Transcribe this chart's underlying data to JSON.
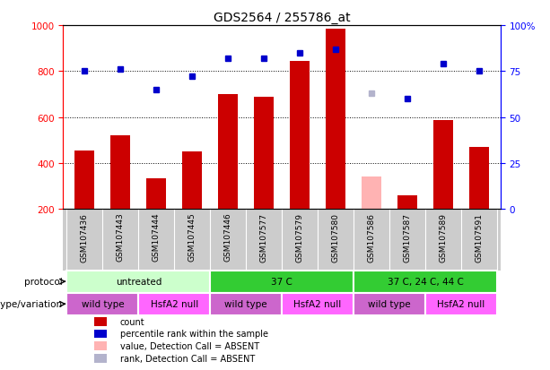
{
  "title": "GDS2564 / 255786_at",
  "samples": [
    "GSM107436",
    "GSM107443",
    "GSM107444",
    "GSM107445",
    "GSM107446",
    "GSM107577",
    "GSM107579",
    "GSM107580",
    "GSM107586",
    "GSM107587",
    "GSM107589",
    "GSM107591"
  ],
  "bar_values": [
    455,
    520,
    335,
    450,
    700,
    690,
    845,
    985,
    340,
    258,
    585,
    470
  ],
  "bar_colors": [
    "#cc0000",
    "#cc0000",
    "#cc0000",
    "#cc0000",
    "#cc0000",
    "#cc0000",
    "#cc0000",
    "#cc0000",
    "#ffb3b3",
    "#cc0000",
    "#cc0000",
    "#cc0000"
  ],
  "dot_values": [
    75,
    76,
    65,
    72,
    82,
    82,
    85,
    87,
    63,
    60,
    79,
    75
  ],
  "dot_colors": [
    "#0000cc",
    "#0000cc",
    "#0000cc",
    "#0000cc",
    "#0000cc",
    "#0000cc",
    "#0000cc",
    "#0000cc",
    "#b3b3cc",
    "#0000cc",
    "#0000cc",
    "#0000cc"
  ],
  "ylim_left": [
    200,
    1000
  ],
  "ylim_right": [
    0,
    100
  ],
  "yticks_left": [
    200,
    400,
    600,
    800,
    1000
  ],
  "yticks_right": [
    0,
    25,
    50,
    75,
    100
  ],
  "yticklabels_right": [
    "0",
    "25",
    "50",
    "75",
    "100%"
  ],
  "gridlines": [
    400,
    600,
    800
  ],
  "protocol_groups": [
    {
      "label": "untreated",
      "start": 0,
      "end": 4,
      "color": "#ccffcc"
    },
    {
      "label": "37 C",
      "start": 4,
      "end": 8,
      "color": "#33cc33"
    },
    {
      "label": "37 C, 24 C, 44 C",
      "start": 8,
      "end": 12,
      "color": "#33cc33"
    }
  ],
  "genotype_groups": [
    {
      "label": "wild type",
      "start": 0,
      "end": 2,
      "color": "#cc66cc"
    },
    {
      "label": "HsfA2 null",
      "start": 2,
      "end": 4,
      "color": "#ff66ff"
    },
    {
      "label": "wild type",
      "start": 4,
      "end": 6,
      "color": "#cc66cc"
    },
    {
      "label": "HsfA2 null",
      "start": 6,
      "end": 8,
      "color": "#ff66ff"
    },
    {
      "label": "wild type",
      "start": 8,
      "end": 10,
      "color": "#cc66cc"
    },
    {
      "label": "HsfA2 null",
      "start": 10,
      "end": 12,
      "color": "#ff66ff"
    }
  ],
  "protocol_label": "protocol",
  "genotype_label": "genotype/variation",
  "legend_items": [
    {
      "color": "#cc0000",
      "label": "count"
    },
    {
      "color": "#0000cc",
      "label": "percentile rank within the sample"
    },
    {
      "color": "#ffb3b3",
      "label": "value, Detection Call = ABSENT"
    },
    {
      "color": "#b3b3cc",
      "label": "rank, Detection Call = ABSENT"
    }
  ],
  "bar_width": 0.55,
  "background_color": "#ffffff",
  "plot_bg_color": "#ffffff",
  "sample_bg_color": "#cccccc"
}
